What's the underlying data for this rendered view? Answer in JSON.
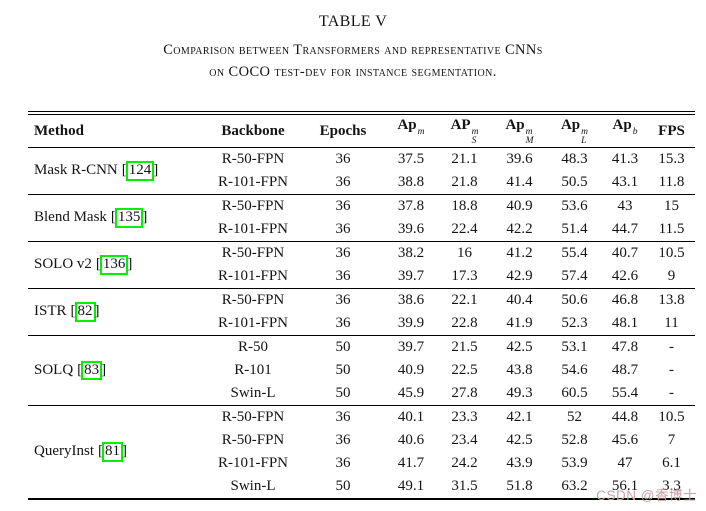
{
  "page": {
    "title": "TABLE V",
    "subtitle_line1": "Comparison between Transformers and representative CNNs",
    "subtitle_line2": "on COCO test-dev for instance segmentation."
  },
  "table": {
    "bracket_open": "[",
    "bracket_close": "]",
    "headers": {
      "method": "Method",
      "backbone": "Backbone",
      "epochs": "Epochs",
      "ap_mask": {
        "base": "Ap",
        "sup": "m",
        "sub": ""
      },
      "ap_small": {
        "base": "AP",
        "sup": "m",
        "sub": "S"
      },
      "ap_medium": {
        "base": "Ap",
        "sup": "m",
        "sub": "M"
      },
      "ap_large": {
        "base": "Ap",
        "sup": "m",
        "sub": "L"
      },
      "ap_box": {
        "base": "Ap",
        "sup": "b",
        "sub": ""
      },
      "fps": "FPS"
    },
    "groups": [
      {
        "method": "Mask R-CNN",
        "cite": "124",
        "rows": [
          [
            "R-50-FPN",
            "36",
            "37.5",
            "21.1",
            "39.6",
            "48.3",
            "41.3",
            "15.3"
          ],
          [
            "R-101-FPN",
            "36",
            "38.8",
            "21.8",
            "41.4",
            "50.5",
            "43.1",
            "11.8"
          ]
        ]
      },
      {
        "method": "Blend Mask",
        "cite": "135",
        "rows": [
          [
            "R-50-FPN",
            "36",
            "37.8",
            "18.8",
            "40.9",
            "53.6",
            "43",
            "15"
          ],
          [
            "R-101-FPN",
            "36",
            "39.6",
            "22.4",
            "42.2",
            "51.4",
            "44.7",
            "11.5"
          ]
        ]
      },
      {
        "method": "SOLO v2",
        "cite": "136",
        "rows": [
          [
            "R-50-FPN",
            "36",
            "38.2",
            "16",
            "41.2",
            "55.4",
            "40.7",
            "10.5"
          ],
          [
            "R-101-FPN",
            "36",
            "39.7",
            "17.3",
            "42.9",
            "57.4",
            "42.6",
            "9"
          ]
        ]
      },
      {
        "method": "ISTR",
        "cite": "82",
        "rows": [
          [
            "R-50-FPN",
            "36",
            "38.6",
            "22.1",
            "40.4",
            "50.6",
            "46.8",
            "13.8"
          ],
          [
            "R-101-FPN",
            "36",
            "39.9",
            "22.8",
            "41.9",
            "52.3",
            "48.1",
            "11"
          ]
        ]
      },
      {
        "method": "SOLQ",
        "cite": "83",
        "rows": [
          [
            "R-50",
            "50",
            "39.7",
            "21.5",
            "42.5",
            "53.1",
            "47.8",
            "-"
          ],
          [
            "R-101",
            "50",
            "40.9",
            "22.5",
            "43.8",
            "54.6",
            "48.7",
            "-"
          ],
          [
            "Swin-L",
            "50",
            "45.9",
            "27.8",
            "49.3",
            "60.5",
            "55.4",
            "-"
          ]
        ]
      },
      {
        "method": "QueryInst",
        "cite": "81",
        "rows": [
          [
            "R-50-FPN",
            "36",
            "40.1",
            "23.3",
            "42.1",
            "52",
            "44.8",
            "10.5"
          ],
          [
            "R-50-FPN",
            "36",
            "40.6",
            "23.4",
            "42.5",
            "52.8",
            "45.6",
            "7"
          ],
          [
            "R-101-FPN",
            "36",
            "41.7",
            "24.2",
            "43.9",
            "53.9",
            "47",
            "6.1"
          ],
          [
            "Swin-L",
            "50",
            "49.1",
            "31.5",
            "51.8",
            "63.2",
            "56.1",
            "3.3"
          ]
        ]
      }
    ]
  },
  "watermark": "CSDN @香博士",
  "colors": {
    "cite-box": "#00f000",
    "watermark": "#c9a2a4"
  }
}
